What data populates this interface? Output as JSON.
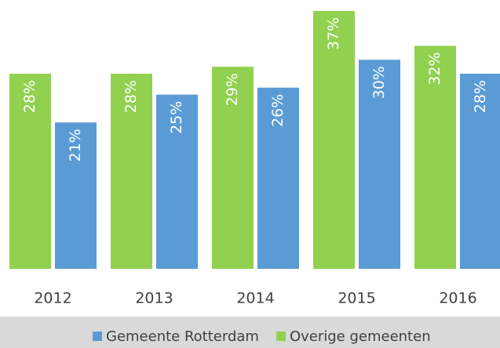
{
  "chart_data": {
    "type": "bar",
    "categories": [
      "2012",
      "2013",
      "2014",
      "2015",
      "2016"
    ],
    "series": [
      {
        "name": "Overige gemeenten",
        "color": "#92d050",
        "values": [
          28,
          28,
          29,
          37,
          32
        ],
        "value_labels": [
          "28%",
          "28%",
          "29%",
          "37%",
          "32%"
        ]
      },
      {
        "name": "Gemeente Rotterdam",
        "color": "#5b9bd5",
        "values": [
          21,
          25,
          26,
          30,
          28
        ],
        "value_labels": [
          "21%",
          "25%",
          "26%",
          "30%",
          "28%"
        ]
      }
    ],
    "ylim": [
      0,
      37
    ],
    "legend": "bottom"
  }
}
